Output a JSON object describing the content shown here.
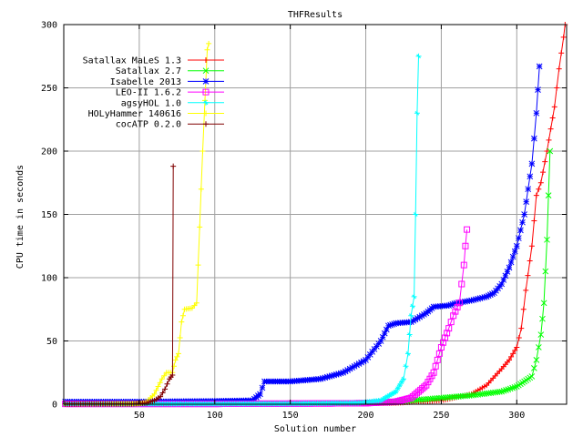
{
  "chart_data": {
    "type": "line",
    "title": "THFResults",
    "xlabel": "Solution number",
    "ylabel": "CPU time in seconds",
    "xlim": [
      0,
      333
    ],
    "ylim": [
      0,
      300
    ],
    "xticks": [
      50,
      100,
      150,
      200,
      250,
      300
    ],
    "yticks": [
      0,
      50,
      100,
      150,
      200,
      250,
      300
    ],
    "xtick_labels": [
      "50",
      "100",
      "150",
      "200",
      "250",
      "300"
    ],
    "ytick_labels": [
      "0",
      "50",
      "100",
      "150",
      "200",
      "250",
      "300"
    ],
    "grid": true,
    "legend_position": "top-left",
    "series": [
      {
        "name": "Satallax MaLeS 1.3",
        "color": "#ff0000",
        "marker": "plus",
        "points": [
          [
            1,
            0.2
          ],
          [
            50,
            0.3
          ],
          [
            100,
            0.5
          ],
          [
            150,
            0.5
          ],
          [
            200,
            0.6
          ],
          [
            220,
            1.0
          ],
          [
            250,
            3
          ],
          [
            270,
            8
          ],
          [
            280,
            15
          ],
          [
            290,
            28
          ],
          [
            295,
            35
          ],
          [
            300,
            45
          ],
          [
            303,
            60
          ],
          [
            306,
            90
          ],
          [
            310,
            125
          ],
          [
            313,
            165
          ],
          [
            316,
            175
          ],
          [
            320,
            200
          ],
          [
            325,
            235
          ],
          [
            328,
            265
          ],
          [
            331,
            290
          ],
          [
            333,
            310
          ]
        ]
      },
      {
        "name": "Satallax 2.7",
        "color": "#00ff00",
        "marker": "cross",
        "points": [
          [
            1,
            0.2
          ],
          [
            100,
            0.5
          ],
          [
            150,
            0.6
          ],
          [
            200,
            1.0
          ],
          [
            230,
            3
          ],
          [
            250,
            5
          ],
          [
            270,
            7
          ],
          [
            290,
            10
          ],
          [
            300,
            14
          ],
          [
            305,
            18
          ],
          [
            310,
            22
          ],
          [
            313,
            35
          ],
          [
            316,
            55
          ],
          [
            318,
            80
          ],
          [
            320,
            130
          ],
          [
            322,
            200
          ]
        ]
      },
      {
        "name": "Isabelle 2013",
        "color": "#0000ff",
        "marker": "asterisk",
        "points": [
          [
            1,
            2
          ],
          [
            50,
            2
          ],
          [
            100,
            2.5
          ],
          [
            125,
            3
          ],
          [
            130,
            8
          ],
          [
            133,
            18
          ],
          [
            150,
            18
          ],
          [
            170,
            20
          ],
          [
            185,
            25
          ],
          [
            200,
            35
          ],
          [
            210,
            50
          ],
          [
            215,
            62
          ],
          [
            220,
            64
          ],
          [
            230,
            65
          ],
          [
            240,
            72
          ],
          [
            245,
            77
          ],
          [
            255,
            78
          ],
          [
            260,
            80
          ],
          [
            270,
            82
          ],
          [
            280,
            85
          ],
          [
            285,
            88
          ],
          [
            290,
            95
          ],
          [
            295,
            108
          ],
          [
            300,
            125
          ],
          [
            305,
            150
          ],
          [
            310,
            190
          ],
          [
            313,
            230
          ],
          [
            315,
            267
          ]
        ]
      },
      {
        "name": "LEO-II 1.6.2",
        "color": "#ff00ff",
        "marker": "square",
        "points": [
          [
            1,
            0.3
          ],
          [
            100,
            0.3
          ],
          [
            150,
            0.5
          ],
          [
            200,
            0.8
          ],
          [
            220,
            2
          ],
          [
            230,
            5
          ],
          [
            235,
            10
          ],
          [
            240,
            15
          ],
          [
            245,
            25
          ],
          [
            250,
            45
          ],
          [
            255,
            60
          ],
          [
            258,
            70
          ],
          [
            262,
            80
          ],
          [
            265,
            110
          ],
          [
            266,
            125
          ],
          [
            267,
            138
          ]
        ]
      },
      {
        "name": "agsyHOL 1.0",
        "color": "#00ffff",
        "marker": "star",
        "points": [
          [
            1,
            0.2
          ],
          [
            100,
            0.3
          ],
          [
            150,
            0.4
          ],
          [
            195,
            1
          ],
          [
            210,
            3
          ],
          [
            220,
            10
          ],
          [
            225,
            20
          ],
          [
            228,
            40
          ],
          [
            230,
            70
          ],
          [
            232,
            85
          ],
          [
            233,
            150
          ],
          [
            234,
            230
          ],
          [
            235,
            275
          ]
        ]
      },
      {
        "name": "HOLyHammer 140616",
        "color": "#ffff00",
        "marker": "plus",
        "points": [
          [
            1,
            0.2
          ],
          [
            50,
            0.5
          ],
          [
            55,
            2
          ],
          [
            60,
            8
          ],
          [
            65,
            20
          ],
          [
            68,
            25
          ],
          [
            72,
            25
          ],
          [
            74,
            35
          ],
          [
            76,
            40
          ],
          [
            78,
            65
          ],
          [
            80,
            75
          ],
          [
            85,
            76
          ],
          [
            88,
            80
          ],
          [
            90,
            140
          ],
          [
            92,
            200
          ],
          [
            95,
            280
          ],
          [
            96,
            285
          ]
        ]
      },
      {
        "name": "cocATP 0.2.0",
        "color": "#800000",
        "marker": "plus",
        "points": [
          [
            1,
            0.2
          ],
          [
            45,
            0.3
          ],
          [
            55,
            1
          ],
          [
            60,
            3
          ],
          [
            64,
            6
          ],
          [
            67,
            12
          ],
          [
            70,
            20
          ],
          [
            72,
            23
          ],
          [
            72.5,
            188
          ]
        ]
      }
    ]
  }
}
